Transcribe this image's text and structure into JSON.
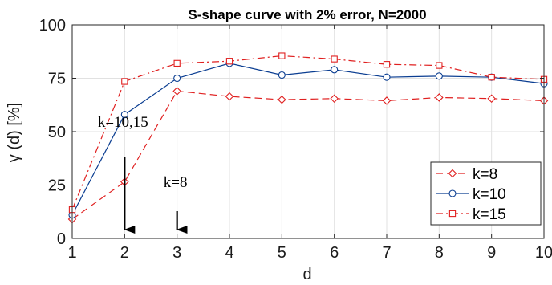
{
  "chart_data": {
    "type": "line",
    "title": "S-shape curve with 2% error, N=2000",
    "xlabel": "d",
    "ylabel": "γ (d) [%]",
    "xlim": [
      1,
      10
    ],
    "ylim": [
      0,
      100
    ],
    "x": [
      1,
      2,
      3,
      4,
      5,
      6,
      7,
      8,
      9,
      10
    ],
    "xticks": [
      "1",
      "2",
      "3",
      "4",
      "5",
      "6",
      "7",
      "8",
      "9",
      "10"
    ],
    "yticks": [
      "0",
      "25",
      "50",
      "75",
      "100"
    ],
    "grid": true,
    "legend_position": "bottom-right",
    "series": [
      {
        "name": "k=8",
        "color": "#e02020",
        "marker": "diamond",
        "line_style": "dashed",
        "values": [
          9,
          26.5,
          69,
          66.5,
          65,
          65.5,
          64.5,
          66,
          65.5,
          64.5
        ]
      },
      {
        "name": "k=10",
        "color": "#0a3d91",
        "marker": "circle",
        "line_style": "solid",
        "values": [
          11,
          58,
          75,
          82,
          76.5,
          79,
          75.5,
          76,
          75.5,
          72.5
        ]
      },
      {
        "name": "k=15",
        "color": "#e02020",
        "marker": "square",
        "line_style": "dashdot",
        "values": [
          13.5,
          73.5,
          82,
          83,
          85.5,
          84,
          81.5,
          81,
          75.5,
          74.5
        ]
      }
    ],
    "annotations": [
      {
        "text": "k=10,15",
        "x": 2
      },
      {
        "text": "k=8",
        "x": 3
      }
    ]
  }
}
